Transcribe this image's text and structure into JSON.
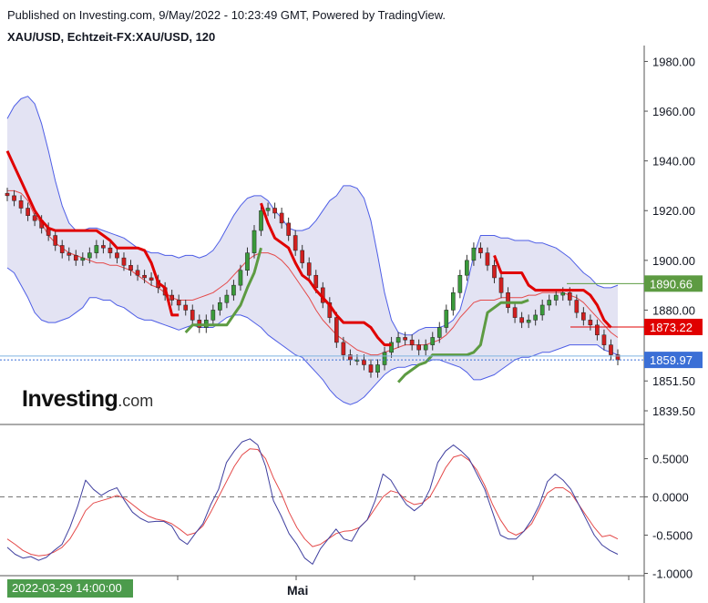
{
  "header": {
    "published": "Published on Investing.com, 9/May/2022 - 10:23:49 GMT, Powered by TradingView.",
    "symbol": "XAU/USD, Echtzeit-FX:XAU/USD, 120"
  },
  "logo": {
    "brand": "Investing",
    "suffix": ".com"
  },
  "time_axis": {
    "badge": "2022-03-29 14:00:00",
    "label_mai": "Mai"
  },
  "colors": {
    "bb_fill": "#e3e3f3",
    "bb_line": "#4e5ee6",
    "bb_mid": "#e44a4a",
    "stop_bear": "#e00000",
    "stop_bull": "#5d9b42",
    "up_candle": "#3a9a3a",
    "down_candle": "#d11f1f",
    "osc_fast": "#3f3f9f",
    "osc_slow": "#e44a4a"
  },
  "chart_data": [
    {
      "type": "line",
      "title": "XAU/USD, Echtzeit-FX:XAU/USD, 120",
      "yaxis": {
        "ylim": [
          1834,
          1982
        ],
        "ticks": [
          "1980.00",
          "1960.00",
          "1940.00",
          "1920.00",
          "1900.00",
          "1880.00",
          "1851.50",
          "1839.50"
        ]
      },
      "price_badges": [
        {
          "label": "1890.66",
          "value": 1890.66,
          "color": "#5d9b42"
        },
        {
          "label": "1873.22",
          "value": 1873.22,
          "color": "#e00000"
        },
        {
          "label": "1859.97",
          "value": 1859.97,
          "color": "#3b6fd6"
        }
      ],
      "series": [
        {
          "name": "close",
          "values": [
            1926,
            1924,
            1921,
            1918,
            1916,
            1913,
            1910,
            1906,
            1903,
            1902,
            1900,
            1901,
            1903,
            1906,
            1905,
            1903,
            1901,
            1898,
            1896,
            1894,
            1893,
            1892,
            1889,
            1886,
            1884,
            1882,
            1880,
            1876,
            1873,
            1876,
            1880,
            1883,
            1886,
            1890,
            1896,
            1903,
            1912,
            1920,
            1921,
            1919,
            1915,
            1910,
            1904,
            1899,
            1894,
            1889,
            1883,
            1877,
            1867,
            1862,
            1860,
            1860,
            1858,
            1855,
            1858,
            1863,
            1867,
            1869,
            1868,
            1866,
            1864,
            1866,
            1869,
            1873,
            1880,
            1887,
            1894,
            1900,
            1905,
            1903,
            1898,
            1893,
            1887,
            1881,
            1877,
            1875,
            1876,
            1878,
            1882,
            1884,
            1886,
            1887,
            1884,
            1879,
            1876,
            1874,
            1870,
            1866,
            1862,
            1860
          ]
        },
        {
          "name": "bb_upper",
          "values": [
            1957,
            1962,
            1965,
            1966,
            1963,
            1955,
            1944,
            1932,
            1922,
            1915,
            1912,
            1912,
            1913,
            1913,
            1912,
            1911,
            1910,
            1909,
            1907,
            1905,
            1904,
            1903,
            1903,
            1902,
            1902,
            1901,
            1902,
            1902,
            1901,
            1902,
            1904,
            1908,
            1913,
            1918,
            1922,
            1925,
            1926,
            1926,
            1924,
            1920,
            1917,
            1913,
            1912,
            1912,
            1913,
            1916,
            1920,
            1924,
            1926,
            1930,
            1930,
            1929,
            1925,
            1916,
            1902,
            1887,
            1876,
            1871,
            1870,
            1870,
            1872,
            1873,
            1873,
            1873,
            1874,
            1876,
            1880,
            1890,
            1902,
            1910,
            1910,
            1910,
            1909,
            1909,
            1908,
            1908,
            1908,
            1907,
            1907,
            1906,
            1905,
            1903,
            1901,
            1898,
            1895,
            1893,
            1890,
            1889,
            1889,
            1890
          ]
        },
        {
          "name": "bb_lower",
          "values": [
            1897,
            1895,
            1890,
            1885,
            1879,
            1876,
            1875,
            1875,
            1876,
            1877,
            1879,
            1881,
            1885,
            1885,
            1884,
            1884,
            1882,
            1881,
            1879,
            1877,
            1876,
            1876,
            1875,
            1874,
            1873,
            1872,
            1873,
            1874,
            1873,
            1873,
            1873,
            1875,
            1877,
            1878,
            1878,
            1877,
            1875,
            1873,
            1870,
            1868,
            1866,
            1864,
            1862,
            1861,
            1858,
            1855,
            1852,
            1848,
            1845,
            1843,
            1842,
            1843,
            1845,
            1848,
            1851,
            1854,
            1856,
            1857,
            1857,
            1858,
            1858,
            1859,
            1860,
            1860,
            1859,
            1858,
            1857,
            1855,
            1852,
            1852,
            1853,
            1854,
            1856,
            1858,
            1860,
            1861,
            1861,
            1862,
            1863,
            1863,
            1864,
            1865,
            1866,
            1866,
            1866,
            1866,
            1866,
            1864,
            1863,
            1862
          ]
        },
        {
          "name": "bb_mid",
          "values": [
            1928,
            1928,
            1927,
            1924,
            1918,
            1915,
            1910,
            1907,
            1905,
            1903,
            1902,
            1901,
            1900,
            1899,
            1899,
            1898,
            1898,
            1897,
            1896,
            1894,
            1892,
            1890,
            1889,
            1887,
            1885,
            1884,
            1884,
            1884,
            1885,
            1886,
            1887,
            1889,
            1891,
            1894,
            1897,
            1900,
            1902,
            1903,
            1903,
            1902,
            1900,
            1897,
            1893,
            1889,
            1885,
            1880,
            1876,
            1873,
            1870,
            1868,
            1866,
            1864,
            1863,
            1862,
            1862,
            1863,
            1864,
            1865,
            1866,
            1866,
            1866,
            1866,
            1867,
            1868,
            1870,
            1873,
            1877,
            1880,
            1883,
            1884,
            1884,
            1884,
            1885,
            1885,
            1885,
            1885,
            1886,
            1886,
            1887,
            1887,
            1887,
            1887,
            1886,
            1885,
            1883,
            1880,
            1877,
            1874,
            1871,
            1869
          ]
        },
        {
          "name": "stop_bear",
          "values": [
            1944,
            1938,
            1932,
            1926,
            1920,
            1916,
            1913,
            1912,
            1912,
            1912,
            1912,
            1912,
            1912,
            1912,
            1910,
            1908,
            1905,
            1905,
            1905,
            1905,
            1904,
            1899,
            1891,
            1889,
            1878,
            1878,
            null,
            null,
            null,
            null,
            null,
            null,
            null,
            null,
            null,
            null,
            null,
            1923,
            1915,
            1909,
            1907,
            1905,
            1899,
            1894,
            1892,
            1888,
            1885,
            1882,
            1878,
            1875,
            1875,
            1875,
            1875,
            1873,
            1869,
            1866,
            1866,
            null,
            null,
            null,
            null,
            null,
            null,
            null,
            null,
            null,
            null,
            null,
            null,
            null,
            null,
            1902,
            1895,
            1895,
            1895,
            1895,
            1890,
            1888,
            1888,
            1888,
            1888,
            1888,
            1888,
            1888,
            1888,
            1886,
            1882,
            1876,
            1873
          ]
        },
        {
          "name": "stop_bull",
          "values": [
            null,
            null,
            null,
            null,
            null,
            null,
            null,
            null,
            null,
            null,
            null,
            null,
            null,
            null,
            null,
            null,
            null,
            null,
            null,
            null,
            null,
            null,
            null,
            null,
            null,
            null,
            1871,
            1874,
            1874,
            1874,
            1874,
            1874,
            1874,
            1878,
            1882,
            1889,
            1895,
            1905,
            null,
            null,
            null,
            null,
            null,
            null,
            null,
            null,
            null,
            null,
            null,
            null,
            null,
            null,
            null,
            null,
            null,
            null,
            null,
            1851,
            1854,
            1856,
            1858,
            1859,
            1862,
            1862,
            1862,
            1862,
            1862,
            1862,
            1863,
            1866,
            1879,
            1881,
            1883,
            1883,
            1883,
            1883,
            1884,
            null,
            null,
            null,
            null,
            null,
            null,
            null,
            null,
            null,
            null,
            null,
            null,
            null
          ]
        }
      ]
    },
    {
      "type": "line",
      "yaxis": {
        "ylim": [
          -1.03,
          0.9
        ],
        "ticks": [
          "0.5000",
          "0.0000",
          "-0.5000",
          "-1.0000"
        ],
        "zero_line": 0
      },
      "series": [
        {
          "values": [
            -0.66,
            -0.75,
            -0.8,
            -0.78,
            -0.83,
            -0.79,
            -0.7,
            -0.62,
            -0.4,
            -0.12,
            0.22,
            0.1,
            0.02,
            0.08,
            0.12,
            -0.05,
            -0.2,
            -0.28,
            -0.33,
            -0.32,
            -0.32,
            -0.38,
            -0.55,
            -0.62,
            -0.48,
            -0.35,
            -0.1,
            0.1,
            0.45,
            0.6,
            0.72,
            0.76,
            0.68,
            0.4,
            -0.05,
            -0.25,
            -0.48,
            -0.62,
            -0.8,
            -0.88,
            -0.68,
            -0.55,
            -0.42,
            -0.55,
            -0.58,
            -0.4,
            -0.3,
            -0.05,
            0.3,
            0.22,
            0.05,
            -0.1,
            -0.18,
            -0.1,
            0.1,
            0.45,
            0.6,
            0.68,
            0.6,
            0.5,
            0.3,
            0.1,
            -0.2,
            -0.5,
            -0.55,
            -0.55,
            -0.45,
            -0.3,
            -0.1,
            0.2,
            0.3,
            0.22,
            0.1,
            -0.1,
            -0.3,
            -0.5,
            -0.63,
            -0.7,
            -0.75
          ]
        },
        {
          "values": [
            -0.55,
            -0.62,
            -0.7,
            -0.75,
            -0.77,
            -0.76,
            -0.72,
            -0.66,
            -0.55,
            -0.38,
            -0.18,
            -0.08,
            -0.05,
            -0.02,
            0.02,
            -0.02,
            -0.1,
            -0.18,
            -0.25,
            -0.29,
            -0.31,
            -0.35,
            -0.42,
            -0.5,
            -0.47,
            -0.38,
            -0.2,
            0.0,
            0.2,
            0.4,
            0.55,
            0.63,
            0.62,
            0.5,
            0.25,
            0.05,
            -0.2,
            -0.4,
            -0.55,
            -0.65,
            -0.62,
            -0.55,
            -0.48,
            -0.45,
            -0.44,
            -0.4,
            -0.3,
            -0.15,
            0.0,
            0.08,
            0.05,
            -0.05,
            -0.1,
            -0.08,
            0.0,
            0.18,
            0.38,
            0.52,
            0.55,
            0.48,
            0.35,
            0.15,
            -0.1,
            -0.3,
            -0.45,
            -0.5,
            -0.45,
            -0.35,
            -0.15,
            0.05,
            0.12,
            0.12,
            0.05,
            -0.1,
            -0.25,
            -0.4,
            -0.52,
            -0.5,
            -0.55
          ]
        }
      ]
    }
  ]
}
